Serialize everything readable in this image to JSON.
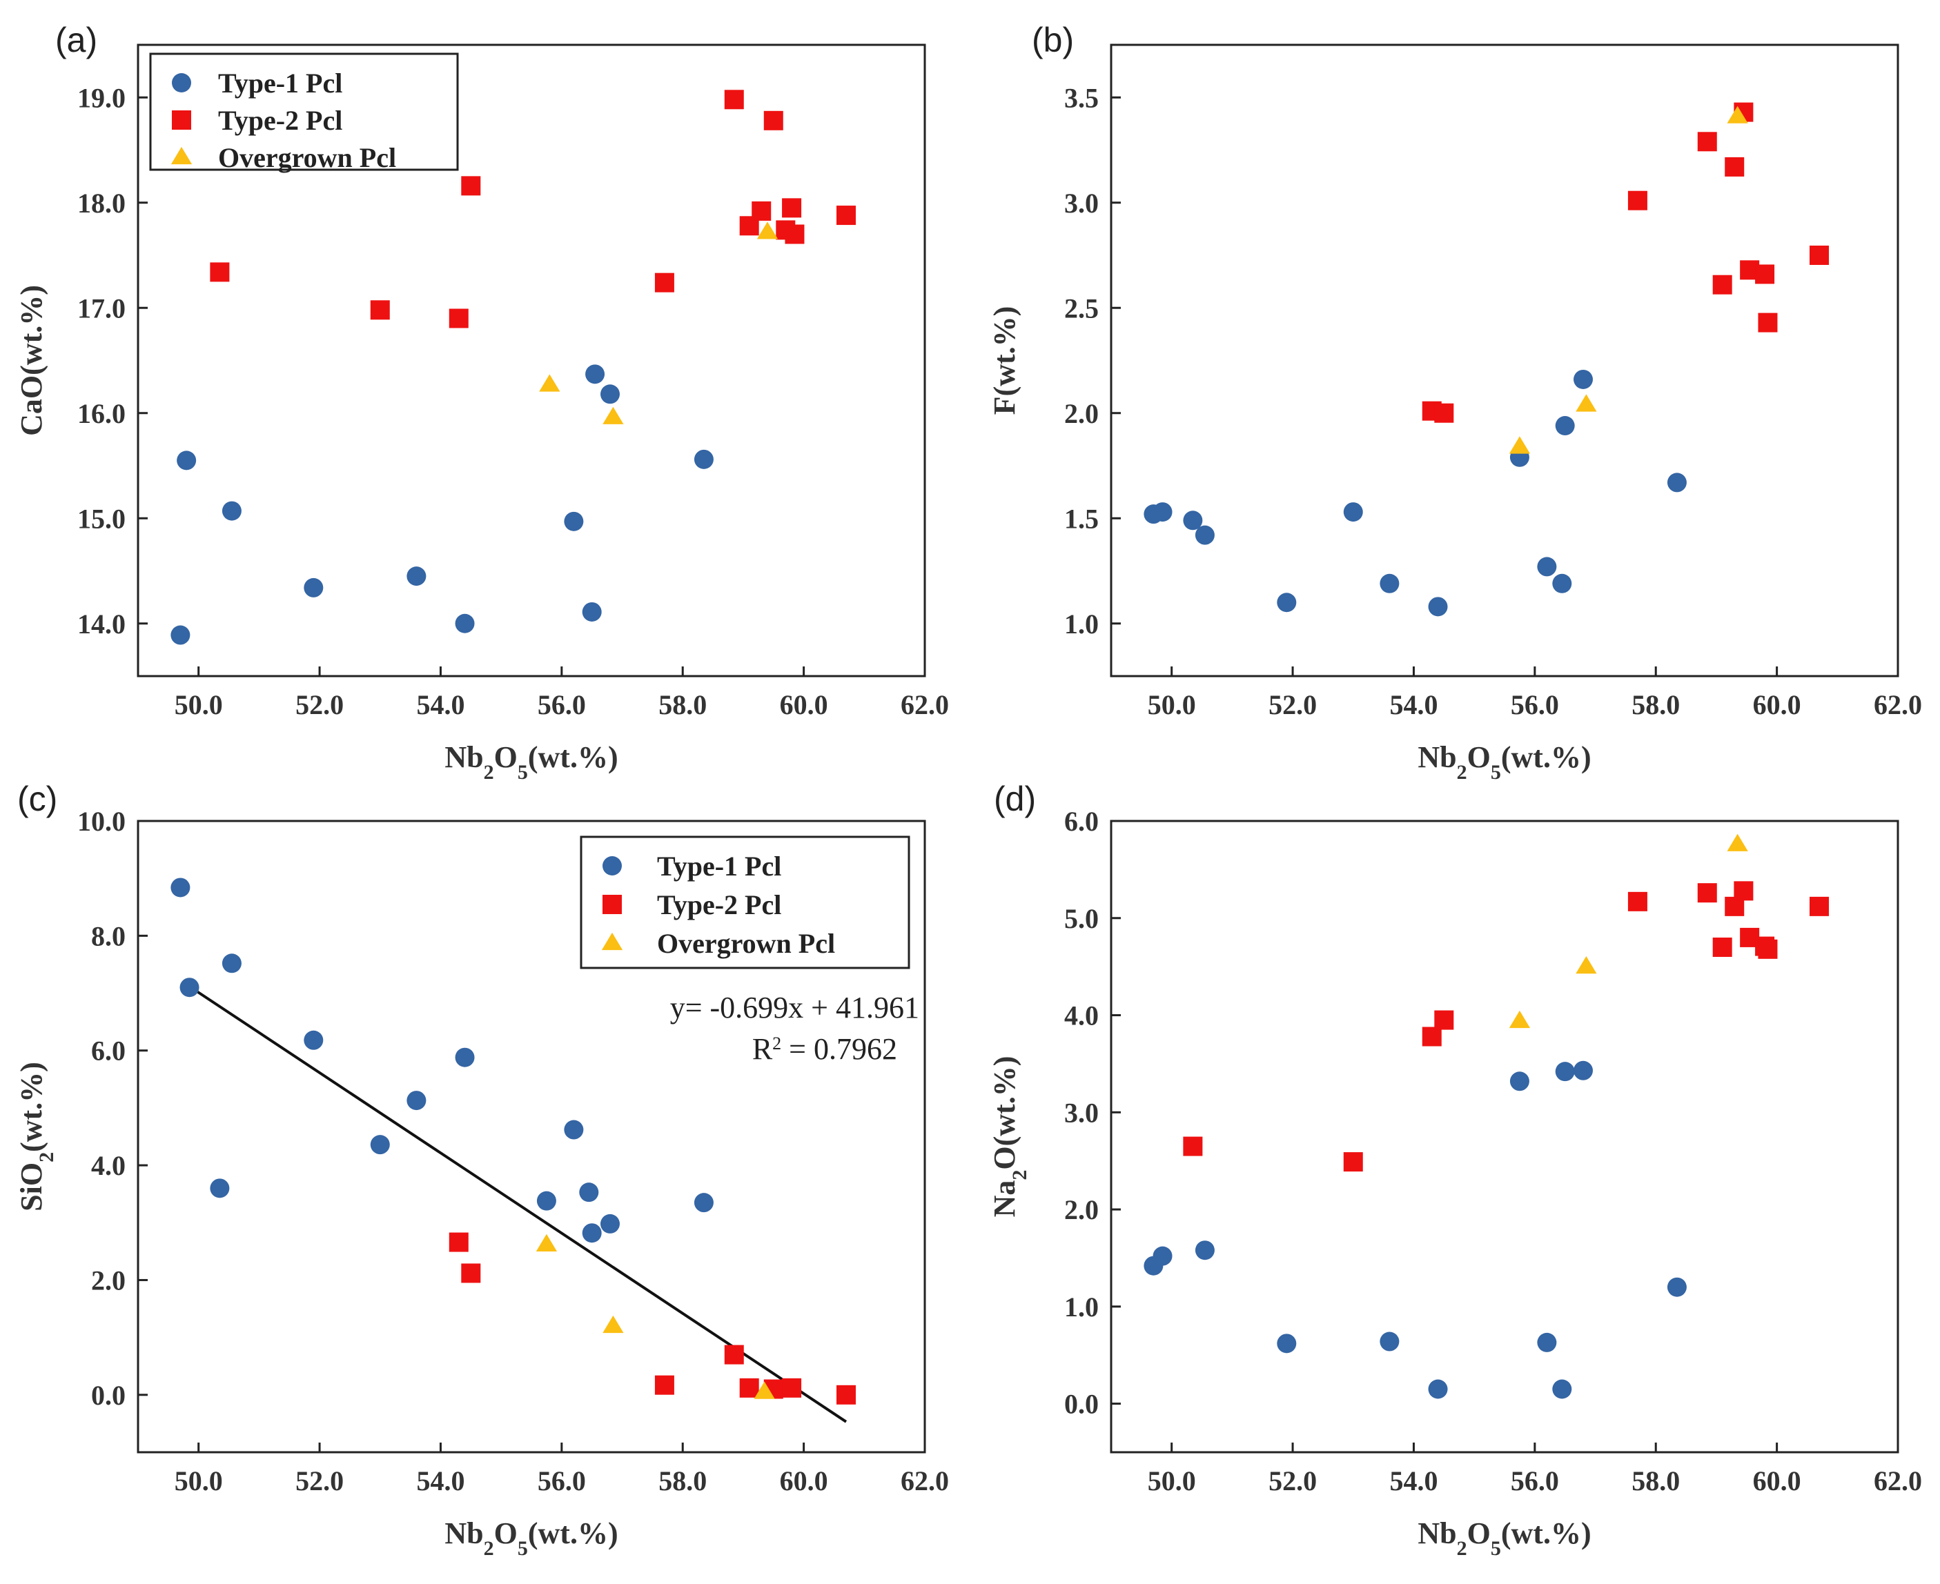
{
  "figure": {
    "series_styles": [
      {
        "name": "Type-1 Pcl",
        "marker": "circle",
        "color": "#3465a4"
      },
      {
        "name": "Type-2 Pcl",
        "marker": "square",
        "color": "#ee1111"
      },
      {
        "name": "Overgrown Pcl",
        "marker": "triangle",
        "color": "#fbbe12"
      }
    ]
  },
  "chart_data": [
    {
      "panel": "(a)",
      "type": "scatter",
      "title": "",
      "xlabel": {
        "base": "Nb",
        "sub1": "2",
        "mid": "O",
        "sub2": "5",
        "tail": "(wt.%)"
      },
      "ylabel": {
        "base": "CaO(wt.%)",
        "sub": "",
        "tail": ""
      },
      "xlim": [
        49.0,
        62.0
      ],
      "ylim": [
        13.5,
        19.5
      ],
      "xticks": [
        "50.0",
        "52.0",
        "54.0",
        "56.0",
        "58.0",
        "60.0",
        "62.0"
      ],
      "yticks": [
        "14.0",
        "15.0",
        "16.0",
        "17.0",
        "18.0",
        "19.0"
      ],
      "legend": {
        "position": "top-left",
        "entries": [
          "Type-1 Pcl",
          "Type-2 Pcl",
          "Overgrown Pcl"
        ]
      },
      "series": [
        {
          "name": "Type-1 Pcl",
          "points": [
            [
              49.7,
              13.89
            ],
            [
              49.8,
              15.55
            ],
            [
              50.55,
              15.07
            ],
            [
              51.9,
              14.34
            ],
            [
              53.6,
              14.45
            ],
            [
              54.4,
              14.0
            ],
            [
              56.2,
              14.97
            ],
            [
              56.5,
              14.11
            ],
            [
              56.55,
              16.37
            ],
            [
              56.8,
              16.18
            ],
            [
              58.35,
              15.56
            ]
          ]
        },
        {
          "name": "Type-2 Pcl",
          "points": [
            [
              50.35,
              17.34
            ],
            [
              53.0,
              16.98
            ],
            [
              54.3,
              16.9
            ],
            [
              54.5,
              18.16
            ],
            [
              57.7,
              17.24
            ],
            [
              58.85,
              18.98
            ],
            [
              59.1,
              17.78
            ],
            [
              59.3,
              17.92
            ],
            [
              59.5,
              18.78
            ],
            [
              59.7,
              17.74
            ],
            [
              59.8,
              17.95
            ],
            [
              59.85,
              17.7
            ],
            [
              60.7,
              17.88
            ]
          ]
        },
        {
          "name": "Overgrown Pcl",
          "points": [
            [
              55.8,
              16.27
            ],
            [
              56.85,
              15.96
            ],
            [
              59.4,
              17.72
            ]
          ]
        }
      ]
    },
    {
      "panel": "(b)",
      "type": "scatter",
      "title": "",
      "xlabel": {
        "base": "Nb",
        "sub1": "2",
        "mid": "O",
        "sub2": "5",
        "tail": "(wt.%)"
      },
      "ylabel": {
        "base": "F(wt.%)",
        "sub": "",
        "tail": ""
      },
      "xlim": [
        49.0,
        62.0
      ],
      "ylim": [
        0.75,
        3.75
      ],
      "xticks": [
        "50.0",
        "52.0",
        "54.0",
        "56.0",
        "58.0",
        "60.0",
        "62.0"
      ],
      "yticks": [
        "1.0",
        "1.5",
        "2.0",
        "2.5",
        "3.0",
        "3.5"
      ],
      "series": [
        {
          "name": "Type-1 Pcl",
          "points": [
            [
              49.7,
              1.52
            ],
            [
              49.85,
              1.53
            ],
            [
              50.35,
              1.49
            ],
            [
              50.55,
              1.42
            ],
            [
              51.9,
              1.1
            ],
            [
              53.0,
              1.53
            ],
            [
              53.6,
              1.19
            ],
            [
              54.4,
              1.08
            ],
            [
              55.75,
              1.79
            ],
            [
              56.2,
              1.27
            ],
            [
              56.45,
              1.19
            ],
            [
              56.5,
              1.94
            ],
            [
              56.8,
              2.16
            ],
            [
              58.35,
              1.67
            ]
          ]
        },
        {
          "name": "Type-2 Pcl",
          "points": [
            [
              54.3,
              2.01
            ],
            [
              54.5,
              2.0
            ],
            [
              57.7,
              3.01
            ],
            [
              58.85,
              3.29
            ],
            [
              59.1,
              2.61
            ],
            [
              59.3,
              3.17
            ],
            [
              59.45,
              3.43
            ],
            [
              59.55,
              2.68
            ],
            [
              59.8,
              2.66
            ],
            [
              59.85,
              2.43
            ],
            [
              60.7,
              2.75
            ]
          ]
        },
        {
          "name": "Overgrown Pcl",
          "points": [
            [
              55.75,
              1.84
            ],
            [
              56.85,
              2.04
            ],
            [
              59.35,
              3.41
            ]
          ]
        }
      ]
    },
    {
      "panel": "(c)",
      "type": "scatter",
      "title": "",
      "xlabel": {
        "base": "Nb",
        "sub1": "2",
        "mid": "O",
        "sub2": "5",
        "tail": "(wt.%)"
      },
      "ylabel": {
        "base": "SiO",
        "sub": "2",
        "tail": "(wt.%)"
      },
      "xlim": [
        49.0,
        62.0
      ],
      "ylim": [
        -1.0,
        10.0
      ],
      "xticks": [
        "50.0",
        "52.0",
        "54.0",
        "56.0",
        "58.0",
        "60.0",
        "62.0"
      ],
      "yticks": [
        "0.0",
        "2.0",
        "4.0",
        "6.0",
        "8.0",
        "10.0"
      ],
      "legend": {
        "position": "top-right",
        "entries": [
          "Type-1 Pcl",
          "Type-2 Pcl",
          "Overgrown Pcl"
        ]
      },
      "fit_line": {
        "x": [
          49.8,
          60.7
        ],
        "slope": -0.699,
        "intercept": 41.961
      },
      "annotation": {
        "equation": "y= -0.699x + 41.961",
        "r2_prefix": "R",
        "r2_sup": "2",
        "r2_value": " = 0.7962"
      },
      "series": [
        {
          "name": "Type-1 Pcl",
          "points": [
            [
              49.7,
              8.84
            ],
            [
              49.85,
              7.1
            ],
            [
              50.35,
              3.6
            ],
            [
              50.55,
              7.52
            ],
            [
              51.9,
              6.18
            ],
            [
              53.0,
              4.36
            ],
            [
              53.6,
              5.13
            ],
            [
              54.4,
              5.88
            ],
            [
              55.75,
              3.38
            ],
            [
              56.2,
              4.62
            ],
            [
              56.45,
              3.53
            ],
            [
              56.5,
              2.82
            ],
            [
              56.8,
              2.98
            ],
            [
              58.35,
              3.35
            ]
          ]
        },
        {
          "name": "Type-2 Pcl",
          "points": [
            [
              54.3,
              2.66
            ],
            [
              54.5,
              2.12
            ],
            [
              57.7,
              0.17
            ],
            [
              58.85,
              0.7
            ],
            [
              59.1,
              0.12
            ],
            [
              59.5,
              0.1
            ],
            [
              59.8,
              0.12
            ],
            [
              60.7,
              0.0
            ]
          ]
        },
        {
          "name": "Overgrown Pcl",
          "points": [
            [
              55.75,
              2.62
            ],
            [
              56.85,
              1.2
            ],
            [
              59.35,
              0.05
            ]
          ]
        }
      ]
    },
    {
      "panel": "(d)",
      "type": "scatter",
      "title": "",
      "xlabel": {
        "base": "Nb",
        "sub1": "2",
        "mid": "O",
        "sub2": "5",
        "tail": "(wt.%)"
      },
      "ylabel": {
        "base": "Na",
        "sub": "2",
        "tail": "O(wt.%)"
      },
      "xlim": [
        49.0,
        62.0
      ],
      "ylim": [
        -0.5,
        6.0
      ],
      "xticks": [
        "50.0",
        "52.0",
        "54.0",
        "56.0",
        "58.0",
        "60.0",
        "62.0"
      ],
      "yticks": [
        "0.0",
        "1.0",
        "2.0",
        "3.0",
        "4.0",
        "5.0",
        "6.0"
      ],
      "series": [
        {
          "name": "Type-1 Pcl",
          "points": [
            [
              49.7,
              1.42
            ],
            [
              49.85,
              1.52
            ],
            [
              50.55,
              1.58
            ],
            [
              51.9,
              0.62
            ],
            [
              53.6,
              0.64
            ],
            [
              54.4,
              0.15
            ],
            [
              55.75,
              3.32
            ],
            [
              56.2,
              0.63
            ],
            [
              56.45,
              0.15
            ],
            [
              56.5,
              3.42
            ],
            [
              56.8,
              3.43
            ],
            [
              58.35,
              1.2
            ]
          ]
        },
        {
          "name": "Type-2 Pcl",
          "points": [
            [
              50.35,
              2.65
            ],
            [
              53.0,
              2.49
            ],
            [
              54.3,
              3.78
            ],
            [
              54.5,
              3.95
            ],
            [
              57.7,
              5.17
            ],
            [
              58.85,
              5.26
            ],
            [
              59.1,
              4.7
            ],
            [
              59.3,
              5.12
            ],
            [
              59.45,
              5.28
            ],
            [
              59.55,
              4.8
            ],
            [
              59.8,
              4.71
            ],
            [
              59.85,
              4.68
            ],
            [
              60.7,
              5.12
            ]
          ]
        },
        {
          "name": "Overgrown Pcl",
          "points": [
            [
              55.75,
              3.94
            ],
            [
              56.85,
              4.5
            ],
            [
              59.35,
              5.76
            ]
          ]
        }
      ]
    }
  ]
}
